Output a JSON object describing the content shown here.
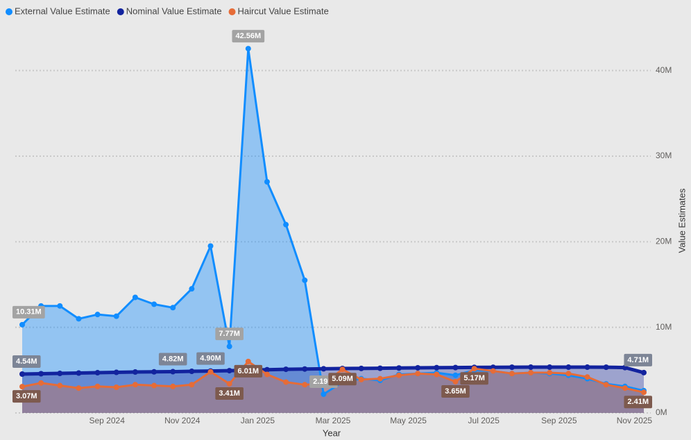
{
  "chart_data": {
    "type": "area",
    "x_label": "Year",
    "y_label": "Value Estimates",
    "x": [
      "Jul 2024",
      "Jul 2024",
      "Aug 2024",
      "Aug 2024",
      "Sep 2024",
      "Sep 2024",
      "Oct 2024",
      "Oct 2024",
      "Nov 2024",
      "Nov 2024",
      "Dec 2024",
      "Dec 2024",
      "Jan 2025",
      "Jan 2025",
      "Feb 2025",
      "Feb 2025",
      "Mar 2025",
      "Mar 2025",
      "Apr 2025",
      "Apr 2025",
      "May 2025",
      "May 2025",
      "Jun 2025",
      "Jun 2025",
      "Jul 2025",
      "Jul 2025",
      "Aug 2025",
      "Aug 2025",
      "Sep 2025",
      "Sep 2025",
      "Oct 2025",
      "Oct 2025",
      "Nov 2025",
      "Nov 2025"
    ],
    "xticks": [
      "Sep 2024",
      "Nov 2024",
      "Jan 2025",
      "Mar 2025",
      "May 2025",
      "Jul 2025",
      "Sep 2025",
      "Nov 2025"
    ],
    "ylim": [
      0,
      45
    ],
    "yticks": [
      {
        "value": 0,
        "label": "0M"
      },
      {
        "value": 10,
        "label": "10M"
      },
      {
        "value": 20,
        "label": "20M"
      },
      {
        "value": 30,
        "label": "30M"
      },
      {
        "value": 40,
        "label": "40M"
      }
    ],
    "grid": true,
    "legend": "top-left",
    "series": [
      {
        "name": "External Value Estimate",
        "color": "#118dff",
        "label_color": "#a3a3a3",
        "values": [
          10.31,
          12.5,
          12.5,
          11,
          11.5,
          11.3,
          13.5,
          12.7,
          12.3,
          14.5,
          19.5,
          7.77,
          42.56,
          27,
          22,
          15.5,
          2.19,
          3.6,
          4.0,
          3.8,
          4.5,
          4.6,
          4.7,
          4.4,
          5.0,
          4.9,
          4.6,
          4.7,
          4.6,
          4.4,
          4.0,
          3.4,
          3.1,
          2.6
        ],
        "value_labels": [
          "10.31M",
          null,
          null,
          null,
          null,
          null,
          null,
          null,
          null,
          null,
          null,
          "7.77M",
          "42.56M",
          null,
          null,
          null,
          "2.19M",
          null,
          null,
          null,
          null,
          null,
          null,
          null,
          null,
          null,
          null,
          null,
          null,
          null,
          null,
          null,
          null,
          null
        ]
      },
      {
        "name": "Nominal Value Estimate",
        "color": "#12239e",
        "label_color": "#7d8596",
        "values": [
          4.54,
          4.58,
          4.62,
          4.66,
          4.7,
          4.74,
          4.78,
          4.8,
          4.82,
          4.86,
          4.9,
          4.94,
          5.0,
          5.05,
          5.1,
          5.13,
          5.16,
          5.19,
          5.2,
          5.22,
          5.25,
          5.27,
          5.29,
          5.3,
          5.32,
          5.33,
          5.34,
          5.35,
          5.35,
          5.35,
          5.35,
          5.34,
          5.3,
          4.71
        ],
        "value_labels": [
          "4.54M",
          null,
          null,
          null,
          null,
          null,
          null,
          null,
          "4.82M",
          null,
          "4.90M",
          null,
          null,
          null,
          null,
          null,
          null,
          null,
          null,
          null,
          null,
          null,
          null,
          null,
          null,
          null,
          null,
          null,
          null,
          null,
          null,
          null,
          null,
          "4.71M"
        ]
      },
      {
        "name": "Haircut Value Estimate",
        "color": "#e66c37",
        "label_color": "#7d5a4e",
        "values": [
          3.07,
          3.5,
          3.2,
          2.9,
          3.1,
          3.0,
          3.3,
          3.2,
          3.1,
          3.3,
          4.8,
          3.41,
          6.01,
          4.5,
          3.6,
          3.3,
          3.4,
          5.09,
          3.9,
          4.0,
          4.4,
          4.6,
          4.5,
          3.65,
          5.17,
          4.9,
          4.6,
          4.7,
          4.7,
          4.6,
          4.2,
          3.3,
          2.9,
          2.41
        ],
        "value_labels": [
          "3.07M",
          null,
          null,
          null,
          null,
          null,
          null,
          null,
          null,
          null,
          null,
          "3.41M",
          "6.01M",
          null,
          null,
          null,
          null,
          "5.09M",
          null,
          null,
          null,
          null,
          null,
          "3.65M",
          "5.17M",
          null,
          null,
          null,
          null,
          null,
          null,
          null,
          null,
          "2.41M"
        ]
      }
    ]
  }
}
